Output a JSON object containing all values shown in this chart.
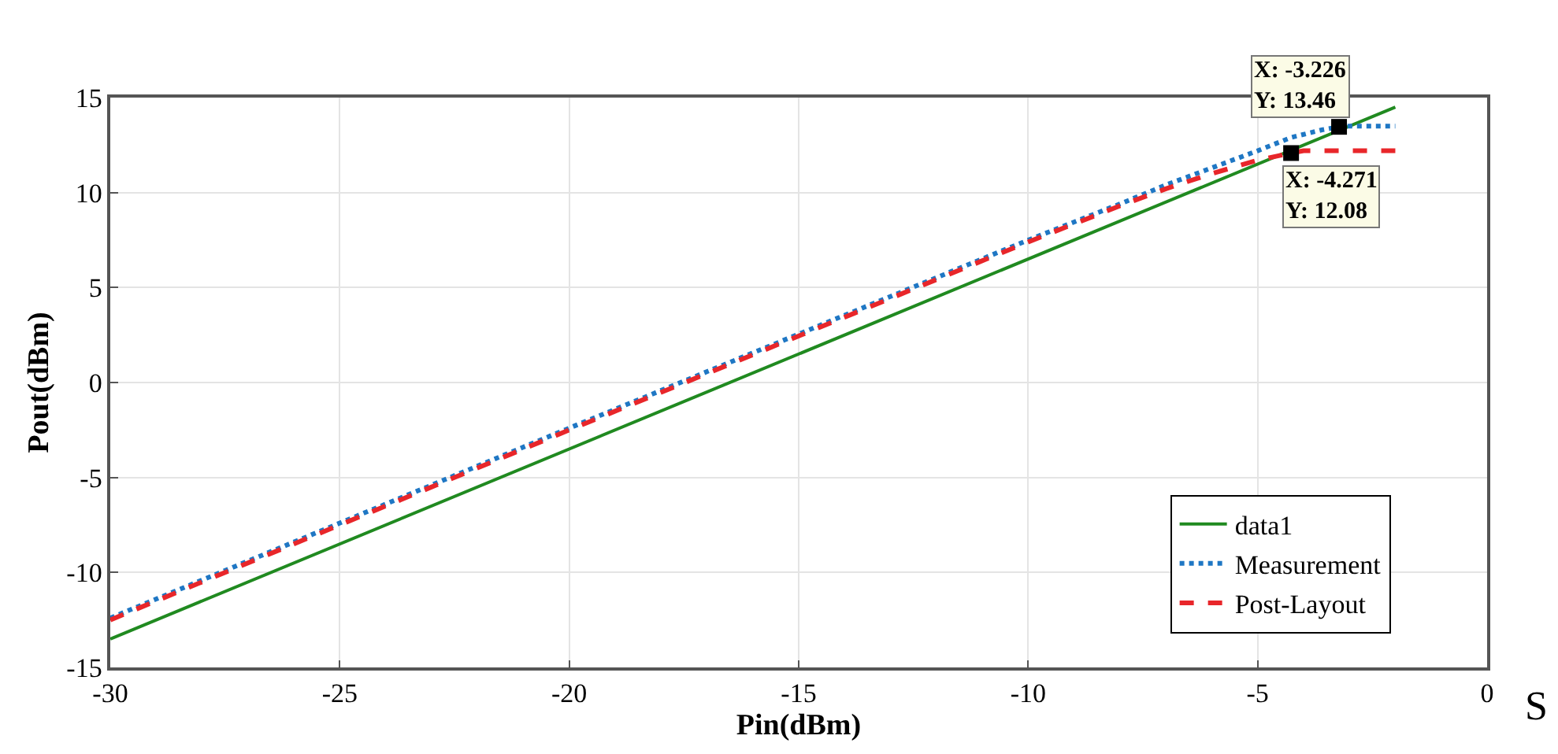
{
  "chart_data": {
    "type": "line",
    "xlabel": "Pin(dBm)",
    "ylabel": "Pout(dBm)",
    "series": [
      {
        "name": "data1",
        "color": "#208a20",
        "line_style": "solid",
        "x": [
          -30,
          -2
        ],
        "values": [
          -13.5,
          14.5
        ]
      },
      {
        "name": "Measurement",
        "color": "#1f77c4",
        "line_style": "dotted",
        "x": [
          -30,
          -20,
          -10,
          -8,
          -7,
          -6,
          -5,
          -4.271,
          -3.6,
          -3.226,
          -3,
          -2
        ],
        "values": [
          -12.4,
          -2.4,
          7.5,
          9.4,
          10.4,
          11.3,
          12.2,
          12.9,
          13.3,
          13.46,
          13.5,
          13.5
        ]
      },
      {
        "name": "Post-Layout",
        "color": "#e8262a",
        "line_style": "dashed",
        "x": [
          -30,
          -20,
          -10,
          -8,
          -7,
          -6,
          -5,
          -4.271,
          -4,
          -3,
          -2
        ],
        "values": [
          -12.5,
          -2.5,
          7.4,
          9.3,
          10.2,
          11.0,
          11.7,
          12.08,
          12.2,
          12.2,
          12.2
        ]
      }
    ],
    "xlim": [
      -30,
      0
    ],
    "xticks": [
      -30,
      -25,
      -20,
      -15,
      -10,
      -5,
      0
    ],
    "ylim": [
      -15,
      15
    ],
    "yticks": [
      -15,
      -10,
      -5,
      0,
      5,
      10,
      15
    ],
    "grid": true,
    "legend": "bottom right",
    "annotations": [
      {
        "text": "X: -3.226\nY: 13.46",
        "x": -3.226,
        "y": 13.46
      },
      {
        "text": "X: -4.271\nY: 12.08",
        "x": -4.271,
        "y": 12.08
      },
      "S"
    ]
  }
}
